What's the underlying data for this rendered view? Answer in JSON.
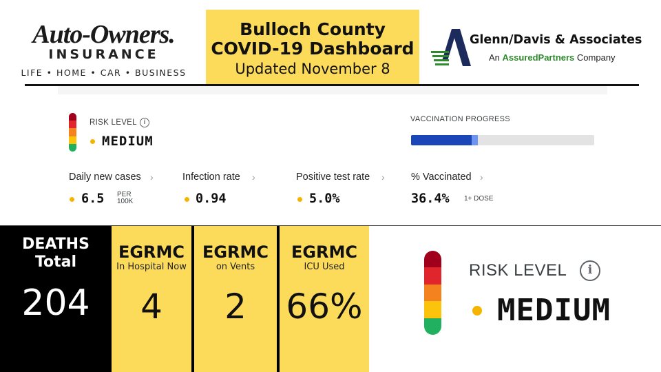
{
  "header": {
    "left_logo": {
      "name": "Auto-Owners.",
      "line2": "INSURANCE",
      "tagline": "LIFE • HOME • CAR • BUSINESS"
    },
    "title": {
      "line1": "Bulloch County",
      "line2": "COVID-19 Dashboard",
      "line3": "Updated November 8"
    },
    "right_logo": {
      "name": "Glenn/Davis & Associates",
      "sub_prefix": "An ",
      "sub_brand": "AssuredPartners",
      "sub_suffix": " Company"
    }
  },
  "dashboard": {
    "risk": {
      "label": "RISK LEVEL",
      "info_icon": "info-icon",
      "value": "MEDIUM",
      "scale_colors": [
        "#a0001c",
        "#e0262c",
        "#f4831f",
        "#fbc30c",
        "#21b060"
      ]
    },
    "vaccination": {
      "label": "VACCINATION PROGRESS",
      "full_fraction": 0.33,
      "partial_fraction": 0.364,
      "full_color": "#1a46b8",
      "partial_color": "#6c94f0"
    },
    "metrics": [
      {
        "label": "Daily new cases",
        "value": "6.5",
        "unit_line1": "PER",
        "unit_line2": "100K"
      },
      {
        "label": "Infection rate",
        "value": "0.94"
      },
      {
        "label": "Positive test rate",
        "value": "5.0%"
      },
      {
        "label": "% Vaccinated",
        "value": "36.4%",
        "unit": "1+ DOSE"
      }
    ],
    "chevron": "›"
  },
  "panels": {
    "deaths": {
      "line1": "DEATHS",
      "line2": "Total",
      "value": "204"
    },
    "egrmc": [
      {
        "title": "EGRMC",
        "sub": "In Hospital Now",
        "value": "4"
      },
      {
        "title": "EGRMC",
        "sub": "on Vents",
        "value": "2"
      },
      {
        "title": "EGRMC",
        "sub": "ICU Used",
        "value": "66%"
      }
    ],
    "risk_large": {
      "label": "RISK LEVEL",
      "value": "MEDIUM"
    }
  },
  "colors": {
    "accent_yellow": "#fddb5a",
    "dot_yellow": "#f4b400",
    "black": "#000000"
  }
}
